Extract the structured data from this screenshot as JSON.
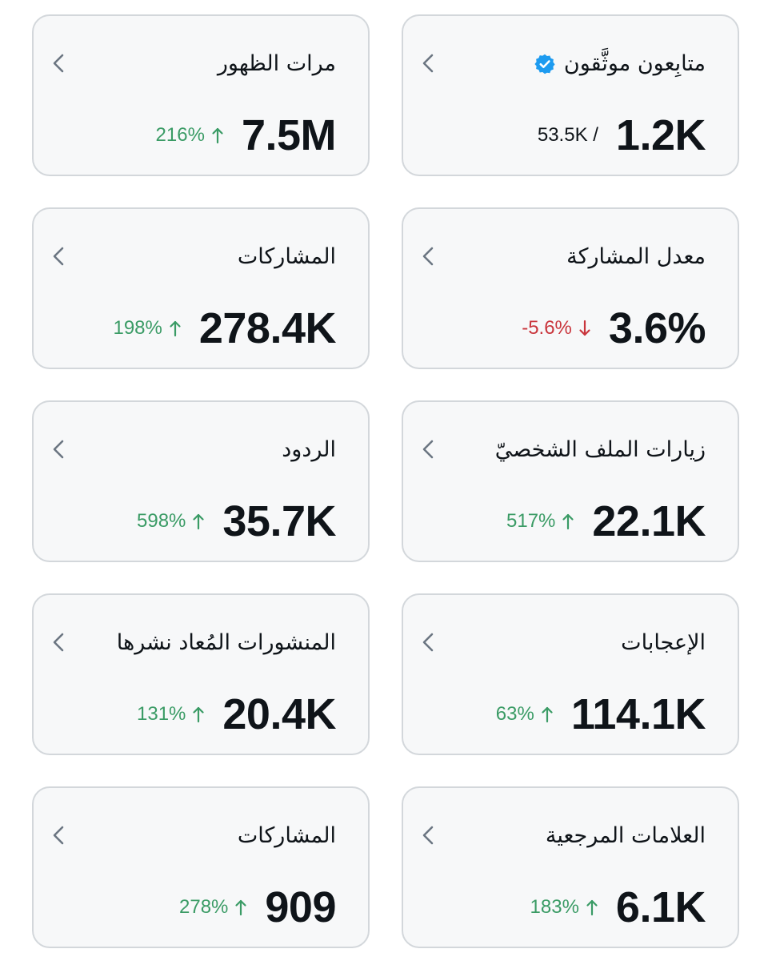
{
  "colors": {
    "card_background": "#f7f8f9",
    "card_border": "#d3d7db",
    "text_primary": "#0f1419",
    "chevron": "#6b7682",
    "positive": "#3a9b65",
    "negative": "#c9353c",
    "verified_badge": "#1d9bf0"
  },
  "cards": [
    {
      "title": "متابِعون موثَّقون",
      "has_verified_badge": true,
      "value": "1.2K",
      "secondary": "53.5K /",
      "icon": "chevron-left-icon"
    },
    {
      "title": "مرات الظهور",
      "value": "7.5M",
      "change": "216%",
      "direction": "up",
      "icon": "chevron-left-icon"
    },
    {
      "title": "معدل المشاركة",
      "value": "3.6%",
      "change": "-5.6%",
      "direction": "down",
      "icon": "chevron-left-icon"
    },
    {
      "title": "المشاركات",
      "value": "278.4K",
      "change": "198%",
      "direction": "up",
      "icon": "chevron-left-icon"
    },
    {
      "title": "زيارات الملف الشخصيّ",
      "value": "22.1K",
      "change": "517%",
      "direction": "up",
      "icon": "chevron-left-icon"
    },
    {
      "title": "الردود",
      "value": "35.7K",
      "change": "598%",
      "direction": "up",
      "icon": "chevron-left-icon"
    },
    {
      "title": "الإعجابات",
      "value": "114.1K",
      "change": "63%",
      "direction": "up",
      "icon": "chevron-left-icon"
    },
    {
      "title": "المنشورات المُعاد نشرها",
      "value": "20.4K",
      "change": "131%",
      "direction": "up",
      "icon": "chevron-left-icon"
    },
    {
      "title": "العلامات المرجعية",
      "value": "6.1K",
      "change": "183%",
      "direction": "up",
      "icon": "chevron-left-icon"
    },
    {
      "title": "المشاركات",
      "value": "909",
      "change": "278%",
      "direction": "up",
      "icon": "chevron-left-icon"
    }
  ]
}
